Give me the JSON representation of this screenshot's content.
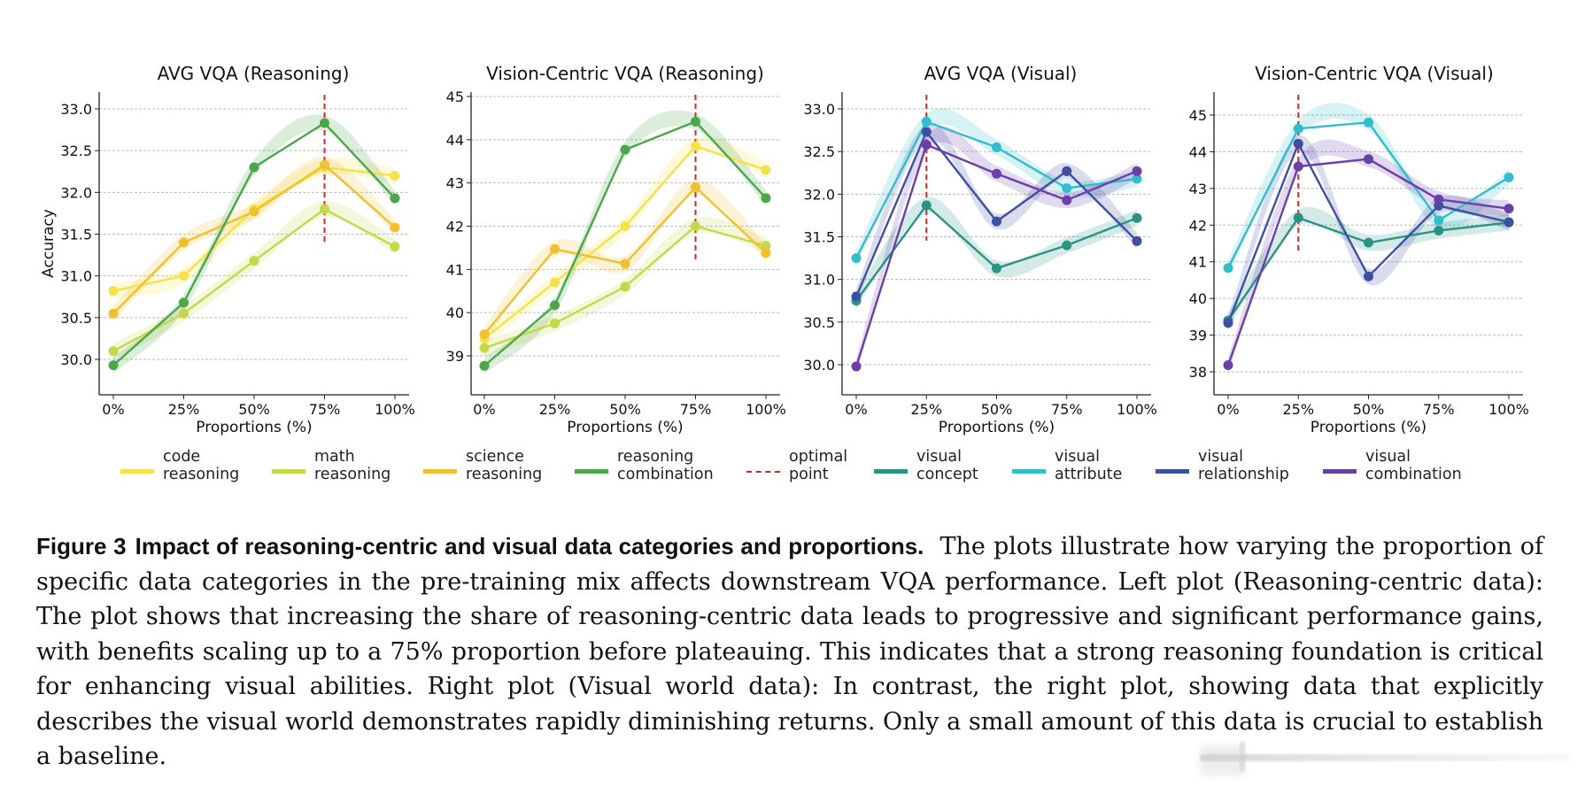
{
  "chart_data": [
    {
      "type": "line",
      "title": "AVG VQA (Reasoning)",
      "xlabel": "Proportions (%)",
      "ylabel": "Accuracy",
      "x": [
        "0%",
        "25%",
        "50%",
        "75%",
        "100%"
      ],
      "yticks": [
        "30.0",
        "30.5",
        "31.0",
        "31.5",
        "32.0",
        "32.5",
        "33.0"
      ],
      "ylim": [
        29.6,
        33.2
      ],
      "grid": true,
      "optimal_point": "75%",
      "series": [
        {
          "name": "code reasoning",
          "color": "#f5e14a",
          "values": [
            30.82,
            31.0,
            31.8,
            32.3,
            32.2
          ]
        },
        {
          "name": "math reasoning",
          "color": "#c5d84a",
          "values": [
            30.1,
            30.55,
            31.18,
            31.8,
            31.35
          ]
        },
        {
          "name": "science reasoning",
          "color": "#f0c030",
          "values": [
            30.55,
            31.4,
            31.77,
            32.33,
            31.58
          ]
        },
        {
          "name": "reasoning combination",
          "color": "#4ca64c",
          "values": [
            29.93,
            30.68,
            32.3,
            32.83,
            31.93
          ]
        }
      ]
    },
    {
      "type": "line",
      "title": "Vision-Centric VQA (Reasoning)",
      "xlabel": "Proportions (%)",
      "ylabel": "",
      "x": [
        "0%",
        "25%",
        "50%",
        "75%",
        "100%"
      ],
      "yticks": [
        "39",
        "40",
        "41",
        "42",
        "43",
        "44",
        "45"
      ],
      "ylim": [
        38.1,
        45.1
      ],
      "grid": true,
      "optimal_point": "75%",
      "series": [
        {
          "name": "code reasoning",
          "color": "#f5e14a",
          "values": [
            39.4,
            40.7,
            42.0,
            43.85,
            43.3
          ]
        },
        {
          "name": "math reasoning",
          "color": "#c5d84a",
          "values": [
            39.18,
            39.75,
            40.6,
            42.0,
            41.55
          ]
        },
        {
          "name": "science reasoning",
          "color": "#f0c030",
          "values": [
            39.5,
            41.47,
            41.13,
            42.9,
            41.38
          ]
        },
        {
          "name": "reasoning combination",
          "color": "#4ca64c",
          "values": [
            38.77,
            40.17,
            43.77,
            44.42,
            42.65
          ]
        }
      ]
    },
    {
      "type": "line",
      "title": "AVG VQA (Visual)",
      "xlabel": "Proportions (%)",
      "ylabel": "",
      "x": [
        "0%",
        "25%",
        "50%",
        "75%",
        "100%"
      ],
      "yticks": [
        "30.0",
        "30.5",
        "31.0",
        "31.5",
        "32.0",
        "32.5",
        "33.0"
      ],
      "ylim": [
        29.65,
        33.2
      ],
      "grid": true,
      "optimal_point": "25%",
      "series": [
        {
          "name": "visual concept",
          "color": "#2a9484",
          "values": [
            30.75,
            31.87,
            31.13,
            31.4,
            31.72
          ]
        },
        {
          "name": "visual attribute",
          "color": "#33bdcc",
          "values": [
            31.25,
            32.85,
            32.55,
            32.07,
            32.18
          ]
        },
        {
          "name": "visual relationship",
          "color": "#3d4fa0",
          "values": [
            30.8,
            32.73,
            31.68,
            32.27,
            31.45
          ]
        },
        {
          "name": "visual combination",
          "color": "#6a3fa8",
          "values": [
            29.98,
            32.58,
            32.24,
            31.93,
            32.27
          ]
        }
      ]
    },
    {
      "type": "line",
      "title": "Vision-Centric VQA (Visual)",
      "xlabel": "Proportions (%)",
      "ylabel": "",
      "x": [
        "0%",
        "25%",
        "50%",
        "75%",
        "100%"
      ],
      "yticks": [
        "38",
        "39",
        "40",
        "41",
        "42",
        "43",
        "44",
        "45"
      ],
      "ylim": [
        37.4,
        45.6
      ],
      "grid": true,
      "optimal_point": "25%",
      "series": [
        {
          "name": "visual concept",
          "color": "#2a9484",
          "values": [
            39.4,
            42.2,
            41.52,
            41.85,
            42.07
          ]
        },
        {
          "name": "visual attribute",
          "color": "#33bdcc",
          "values": [
            40.83,
            44.63,
            44.8,
            42.13,
            43.3
          ]
        },
        {
          "name": "visual relationship",
          "color": "#3d4fa0",
          "values": [
            39.33,
            44.22,
            40.6,
            42.53,
            42.08
          ]
        },
        {
          "name": "visual combination",
          "color": "#6a3fa8",
          "values": [
            38.18,
            43.6,
            43.8,
            42.7,
            42.45
          ]
        }
      ]
    }
  ],
  "legend": {
    "placement": "bottom",
    "items": [
      {
        "label": "code\nreasoning",
        "color": "#f5e14a",
        "style": "solid"
      },
      {
        "label": "math\nreasoning",
        "color": "#c5d84a",
        "style": "solid"
      },
      {
        "label": "science\nreasoning",
        "color": "#f0c030",
        "style": "solid"
      },
      {
        "label": "reasoning\ncombination",
        "color": "#4ca64c",
        "style": "solid"
      },
      {
        "label": "optimal\npoint",
        "color": "#d62728",
        "style": "dashed"
      },
      {
        "label": "visual\nconcept",
        "color": "#2a9484",
        "style": "solid"
      },
      {
        "label": "visual\nattribute",
        "color": "#33bdcc",
        "style": "solid"
      },
      {
        "label": "visual\nrelationship",
        "color": "#3d4fa0",
        "style": "solid"
      },
      {
        "label": "visual\ncombination",
        "color": "#6a3fa8",
        "style": "solid"
      }
    ]
  },
  "caption": {
    "label": "Figure 3",
    "title": "Impact of reasoning-centric and visual data categories and proportions.",
    "body": "The plots illustrate how varying the proportion of specific data categories in the pre-training mix affects downstream VQA performance.  Left plot (Reasoning-centric data): The plot shows that increasing the share of reasoning-centric data leads to progressive and significant performance gains, with benefits scaling up to a 75% proportion before plateauing. This indicates that a strong reasoning foundation is critical for enhancing visual abilities. Right plot (Visual world data): In contrast, the right plot, showing data that explicitly describes the visual world demonstrates rapidly diminishing returns. Only a small amount of this data is crucial to establish a baseline."
  },
  "colors": {
    "optimal_line": "#d62728",
    "grid": "#bbbbbb",
    "axis": "#222222"
  }
}
